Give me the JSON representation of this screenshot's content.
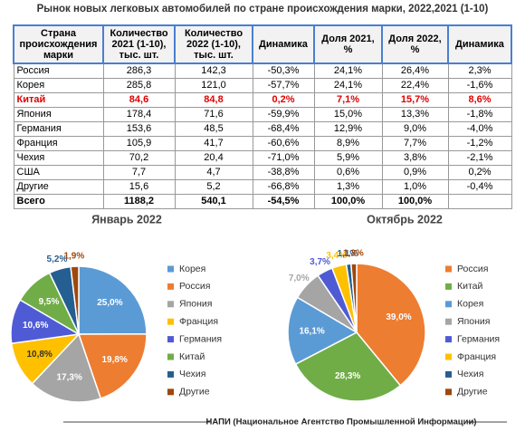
{
  "title": "Рынок новых легковых автомобилей по стране происхождения марки, 2022,2021 (1-10)",
  "table": {
    "header": [
      "Страна происхождения марки",
      "Количество 2021 (1-10), тыс. шт.",
      "Количество 2022 (1-10), тыс. шт.",
      "Динамика",
      "Доля 2021, %",
      "Доля 2022, %",
      "Динамика"
    ],
    "rows": [
      [
        "Россия",
        "286,3",
        "142,3",
        "-50,3%",
        "24,1%",
        "26,4%",
        "2,3%"
      ],
      [
        "Корея",
        "285,8",
        "121,0",
        "-57,7%",
        "24,1%",
        "22,4%",
        "-1,6%"
      ],
      [
        "Китай",
        "84,6",
        "84,8",
        "0,2%",
        "7,1%",
        "15,7%",
        "8,6%"
      ],
      [
        "Япония",
        "178,4",
        "71,6",
        "-59,9%",
        "15,0%",
        "13,3%",
        "-1,8%"
      ],
      [
        "Германия",
        "153,6",
        "48,5",
        "-68,4%",
        "12,9%",
        "9,0%",
        "-4,0%"
      ],
      [
        "Франция",
        "105,9",
        "41,7",
        "-60,6%",
        "8,9%",
        "7,7%",
        "-1,2%"
      ],
      [
        "Чехия",
        "70,2",
        "20,4",
        "-71,0%",
        "5,9%",
        "3,8%",
        "-2,1%"
      ],
      [
        "США",
        "7,7",
        "4,7",
        "-38,8%",
        "0,6%",
        "0,9%",
        "0,2%"
      ],
      [
        "Другие",
        "15,6",
        "5,2",
        "-66,8%",
        "1,3%",
        "1,0%",
        "-0,4%"
      ],
      [
        "Всего",
        "1188,2",
        "540,1",
        "-54,5%",
        "100,0%",
        "100,0%",
        ""
      ]
    ]
  },
  "chart_data": [
    {
      "type": "pie",
      "title": "Январь 2022",
      "categories": [
        "Корея",
        "Россия",
        "Япония",
        "Франция",
        "Германия",
        "Китай",
        "Чехия",
        "Другие"
      ],
      "values": [
        25.0,
        19.8,
        17.3,
        10.8,
        10.6,
        9.5,
        5.2,
        1.9
      ],
      "value_labels": [
        "25,0%",
        "19,8%",
        "17,3%",
        "10,8%",
        "10,6%",
        "9,5%",
        "5,2%",
        "1,9%"
      ],
      "colors": [
        "#5b9bd5",
        "#ed7d31",
        "#a5a5a5",
        "#ffc000",
        "#4f5bd5",
        "#70ad47",
        "#255e91",
        "#9e480e"
      ]
    },
    {
      "type": "pie",
      "title": "Октябрь 2022",
      "categories": [
        "Россия",
        "Китай",
        "Корея",
        "Япония",
        "Германия",
        "Франция",
        "Чехия",
        "Другие"
      ],
      "values": [
        39.0,
        28.3,
        16.1,
        7.0,
        3.7,
        3.4,
        1.1,
        1.3
      ],
      "value_labels": [
        "39,0%",
        "28,3%",
        "16,1%",
        "7,0%",
        "3,7%",
        "3,4%",
        "1,1%",
        "1,3%"
      ],
      "colors": [
        "#ed7d31",
        "#70ad47",
        "#5b9bd5",
        "#a5a5a5",
        "#4f5bd5",
        "#ffc000",
        "#255e91",
        "#9e480e"
      ]
    }
  ],
  "source": "НАПИ (Национальное Агентство Промышленной Информации)"
}
